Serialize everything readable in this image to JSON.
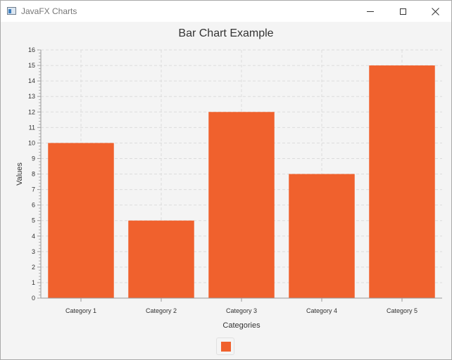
{
  "window": {
    "title": "JavaFX Charts",
    "controls": {
      "minimize": "minimize",
      "maximize": "maximize",
      "close": "close"
    }
  },
  "chart_data": {
    "type": "bar",
    "title": "Bar Chart Example",
    "xlabel": "Categories",
    "ylabel": "Values",
    "categories": [
      "Category 1",
      "Category 2",
      "Category 3",
      "Category 4",
      "Category 5"
    ],
    "values": [
      10,
      5,
      12,
      8,
      15
    ],
    "ylim": [
      0,
      16
    ],
    "ytick_step": 1,
    "yticks": [
      "0",
      "1",
      "2",
      "3",
      "4",
      "5",
      "6",
      "7",
      "8",
      "9",
      "10",
      "11",
      "12",
      "13",
      "14",
      "15",
      "16"
    ],
    "grid": true,
    "legend": "bottom-center",
    "bar_color": "#f0612d"
  }
}
